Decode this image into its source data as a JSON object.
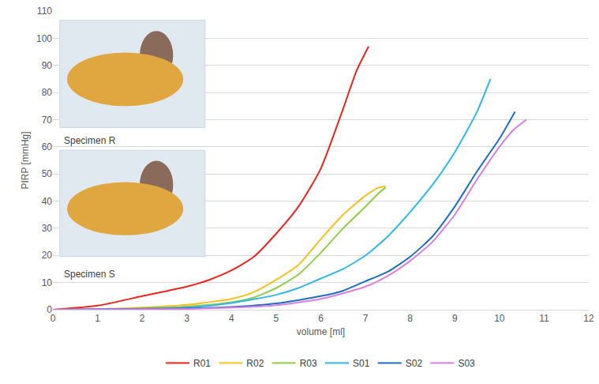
{
  "chart_data": {
    "type": "line",
    "x_label": "volume [ml]",
    "y_label": "PIRP [mmHg]",
    "xlim": [
      0,
      12
    ],
    "xticks": [
      0,
      1,
      2,
      3,
      4,
      5,
      6,
      7,
      8,
      9,
      10,
      11,
      12
    ],
    "ylim": [
      0,
      110
    ],
    "yticks": [
      0,
      10,
      20,
      30,
      40,
      50,
      60,
      70,
      80,
      90,
      100,
      110
    ],
    "grid": true,
    "legend": "bottom",
    "annotations": [
      "Specimen R",
      "Specimen S"
    ],
    "series": [
      {
        "name": "R01",
        "color": "#e8261f",
        "x": [
          0,
          1,
          2,
          3,
          3.5,
          4,
          4.5,
          5,
          5.5,
          6,
          6.5,
          6.8,
          7.07
        ],
        "values": [
          0,
          1.5,
          5,
          8.5,
          11,
          14.5,
          19.5,
          28,
          38,
          52,
          74,
          88,
          97
        ]
      },
      {
        "name": "R02",
        "color": "#f5c024",
        "x": [
          0,
          1,
          2,
          3,
          4,
          4.5,
          5,
          5.5,
          6,
          6.5,
          7,
          7.3,
          7.45
        ],
        "values": [
          0,
          0.2,
          0.8,
          1.8,
          4,
          6.5,
          11,
          16.5,
          26,
          35,
          42,
          45,
          45.5
        ]
      },
      {
        "name": "R03",
        "color": "#8fcc4a",
        "x": [
          0,
          2,
          3,
          4,
          4.5,
          5,
          5.5,
          6,
          6.5,
          7,
          7.3,
          7.45
        ],
        "values": [
          0,
          0.5,
          1.2,
          2.8,
          4.5,
          8,
          13,
          21,
          30,
          38,
          43,
          45
        ]
      },
      {
        "name": "S01",
        "color": "#33b5e8",
        "x": [
          0,
          2,
          3,
          4,
          5,
          5.5,
          6,
          6.5,
          7,
          7.5,
          8,
          8.5,
          9,
          9.5,
          9.8
        ],
        "values": [
          0,
          0.3,
          0.8,
          2.5,
          5.5,
          8,
          11.5,
          15,
          20,
          27,
          36,
          46,
          58,
          73,
          85
        ]
      },
      {
        "name": "S02",
        "color": "#1f6fc0",
        "x": [
          0,
          3,
          4,
          5,
          6,
          6.5,
          7,
          7.5,
          8,
          8.5,
          9,
          9.5,
          10,
          10.35
        ],
        "values": [
          0,
          0.5,
          1,
          2.3,
          5,
          7,
          10.5,
          14,
          19.5,
          27,
          38,
          51,
          63,
          73
        ]
      },
      {
        "name": "S03",
        "color": "#d67fe0",
        "x": [
          0,
          3,
          4,
          5,
          6,
          7,
          7.5,
          8,
          8.5,
          9,
          9.5,
          10,
          10.3,
          10.6
        ],
        "values": [
          0,
          0.3,
          0.8,
          1.7,
          4,
          8.5,
          12.5,
          18,
          25,
          35,
          48,
          60,
          66,
          70
        ]
      }
    ]
  }
}
